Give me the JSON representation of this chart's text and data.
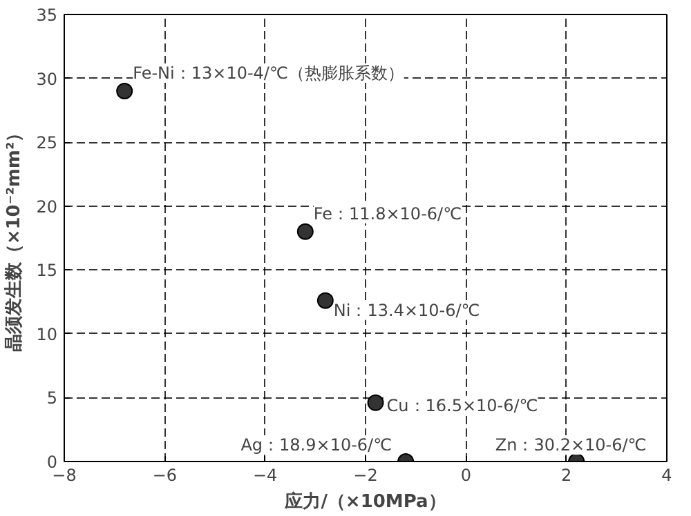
{
  "chart_data": {
    "type": "scatter",
    "xlabel": "应力/（×10MPa）",
    "ylabel": "晶须发生数（×10⁻²mm²）",
    "x": [
      -6.8,
      -3.2,
      -2.8,
      -1.8,
      -1.2,
      2.2
    ],
    "values": [
      29,
      18,
      12.6,
      4.6,
      0,
      0
    ],
    "color": "#333333",
    "marker": "circle",
    "grid": true,
    "line_style": "dashed",
    "xlim": [
      -8,
      4
    ],
    "ylim": [
      0,
      35
    ],
    "xticks": [
      -8,
      -6,
      -4,
      -2,
      0,
      2,
      4
    ],
    "yticks": [
      0,
      5,
      10,
      15,
      20,
      25,
      30,
      35
    ],
    "annotations": [
      {
        "text": "Fe-Ni：13×10-4/℃（热膨胀系数）",
        "x": -6.8,
        "y": 29
      },
      {
        "text": "Fe：11.8×10-6/℃",
        "x": -3.2,
        "y": 18
      },
      {
        "text": "Ni：13.4×10-6/℃",
        "x": -2.8,
        "y": 12.6
      },
      {
        "text": "Cu：16.5×10-6/℃",
        "x": -1.8,
        "y": 4.6
      },
      {
        "text": "Ag：18.9×10-6/℃",
        "x": -1.2,
        "y": 0
      },
      {
        "text": "Zn：30.2×10-6/℃",
        "x": 2.2,
        "y": 0
      }
    ]
  }
}
